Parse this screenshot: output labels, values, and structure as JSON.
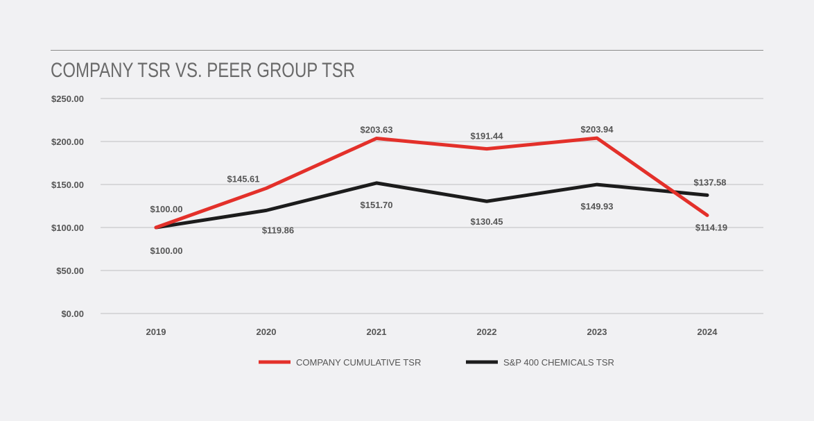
{
  "chart_data": {
    "type": "line",
    "title": "COMPANY TSR VS. PEER GROUP TSR",
    "categories": [
      "2019",
      "2020",
      "2021",
      "2022",
      "2023",
      "2024"
    ],
    "ylim": [
      0,
      250
    ],
    "yticks": [
      0,
      50,
      100,
      150,
      200,
      250
    ],
    "ytick_labels": [
      "$0.00",
      "$50.00",
      "$100.00",
      "$150.00",
      "$200.00",
      "$250.00"
    ],
    "grid": true,
    "legend_placement": "bottom",
    "series": [
      {
        "name": "COMPANY CUMULATIVE TSR",
        "color": "#e3302a",
        "values": [
          100.0,
          145.61,
          203.63,
          191.44,
          203.94,
          114.19
        ],
        "labels": [
          "$100.00",
          "$145.61",
          "$203.63",
          "$191.44",
          "$203.94",
          "$114.19"
        ]
      },
      {
        "name": "S&P 400 CHEMICALS TSR",
        "color": "#1c1c1c",
        "values": [
          100.0,
          119.86,
          151.7,
          130.45,
          149.93,
          137.58
        ],
        "labels": [
          "$100.00",
          "$119.86",
          "$151.70",
          "$130.45",
          "$149.93",
          "$137.58"
        ]
      }
    ]
  }
}
